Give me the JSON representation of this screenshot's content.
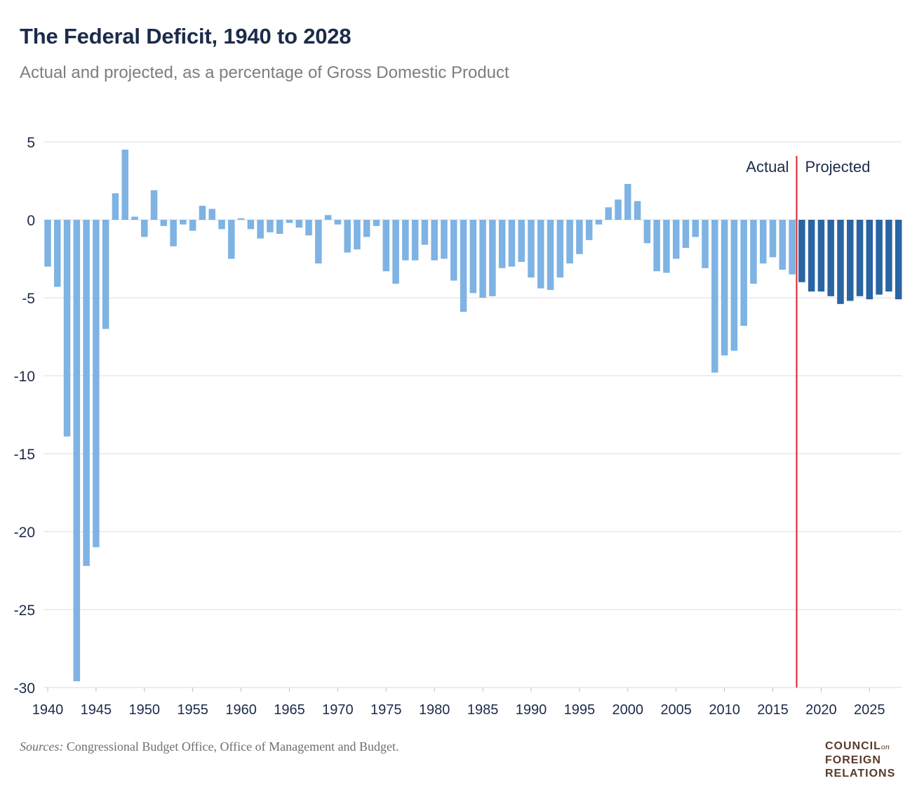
{
  "title": "The Federal Deficit, 1940 to 2028",
  "subtitle": "Actual and projected, as a percentage of Gross Domestic Product",
  "source_prefix": "Sources:",
  "source_text": "Congressional Budget Office, Office of Management and Budget.",
  "logo": {
    "line1": "COUNCIL",
    "on": "on",
    "line2": "FOREIGN",
    "line3": "RELATIONS"
  },
  "colors": {
    "actual": "#7eb3e3",
    "projected": "#2a64a3",
    "divider": "#d6242f",
    "grid": "#dcdcdc",
    "text": "#1c2b4a"
  },
  "chart_data": {
    "type": "bar",
    "title": "The Federal Deficit, 1940 to 2028",
    "xlabel": "",
    "ylabel": "",
    "ylim": [
      -30,
      5
    ],
    "yticks": [
      5,
      0,
      -5,
      -10,
      -15,
      -20,
      -25,
      -30
    ],
    "xticks": [
      1940,
      1945,
      1950,
      1955,
      1960,
      1965,
      1970,
      1975,
      1980,
      1985,
      1990,
      1995,
      2000,
      2005,
      2010,
      2015,
      2020,
      2025
    ],
    "grid": true,
    "split_year": 2017.5,
    "annotations": {
      "left": "Actual",
      "right": "Projected"
    },
    "series": [
      {
        "name": "Actual",
        "years": [
          1940,
          1941,
          1942,
          1943,
          1944,
          1945,
          1946,
          1947,
          1948,
          1949,
          1950,
          1951,
          1952,
          1953,
          1954,
          1955,
          1956,
          1957,
          1958,
          1959,
          1960,
          1961,
          1962,
          1963,
          1964,
          1965,
          1966,
          1967,
          1968,
          1969,
          1970,
          1971,
          1972,
          1973,
          1974,
          1975,
          1976,
          1977,
          1978,
          1979,
          1980,
          1981,
          1982,
          1983,
          1984,
          1985,
          1986,
          1987,
          1988,
          1989,
          1990,
          1991,
          1992,
          1993,
          1994,
          1995,
          1996,
          1997,
          1998,
          1999,
          2000,
          2001,
          2002,
          2003,
          2004,
          2005,
          2006,
          2007,
          2008,
          2009,
          2010,
          2011,
          2012,
          2013,
          2014,
          2015,
          2016,
          2017
        ],
        "values": [
          -3,
          -4.3,
          -13.9,
          -29.6,
          -22.2,
          -21,
          -7,
          1.7,
          4.5,
          0.2,
          -1.1,
          1.9,
          -0.4,
          -1.7,
          -0.3,
          -0.7,
          0.9,
          0.7,
          -0.6,
          -2.5,
          0.1,
          -0.6,
          -1.2,
          -0.8,
          -0.9,
          -0.2,
          -0.5,
          -1,
          -2.8,
          0.3,
          -0.3,
          -2.1,
          -1.9,
          -1.1,
          -0.4,
          -3.3,
          -4.1,
          -2.6,
          -2.6,
          -1.6,
          -2.6,
          -2.5,
          -3.9,
          -5.9,
          -4.7,
          -5,
          -4.9,
          -3.1,
          -3,
          -2.7,
          -3.7,
          -4.4,
          -4.5,
          -3.7,
          -2.8,
          -2.2,
          -1.3,
          -0.3,
          0.8,
          1.3,
          2.3,
          1.2,
          -1.5,
          -3.3,
          -3.4,
          -2.5,
          -1.8,
          -1.1,
          -3.1,
          -9.8,
          -8.7,
          -8.4,
          -6.8,
          -4.1,
          -2.8,
          -2.4,
          -3.2,
          -3.5
        ]
      },
      {
        "name": "Projected",
        "years": [
          2018,
          2019,
          2020,
          2021,
          2022,
          2023,
          2024,
          2025,
          2026,
          2027,
          2028
        ],
        "values": [
          -4,
          -4.6,
          -4.6,
          -4.9,
          -5.4,
          -5.2,
          -4.9,
          -5.1,
          -4.8,
          -4.6,
          -5.1
        ]
      }
    ]
  }
}
